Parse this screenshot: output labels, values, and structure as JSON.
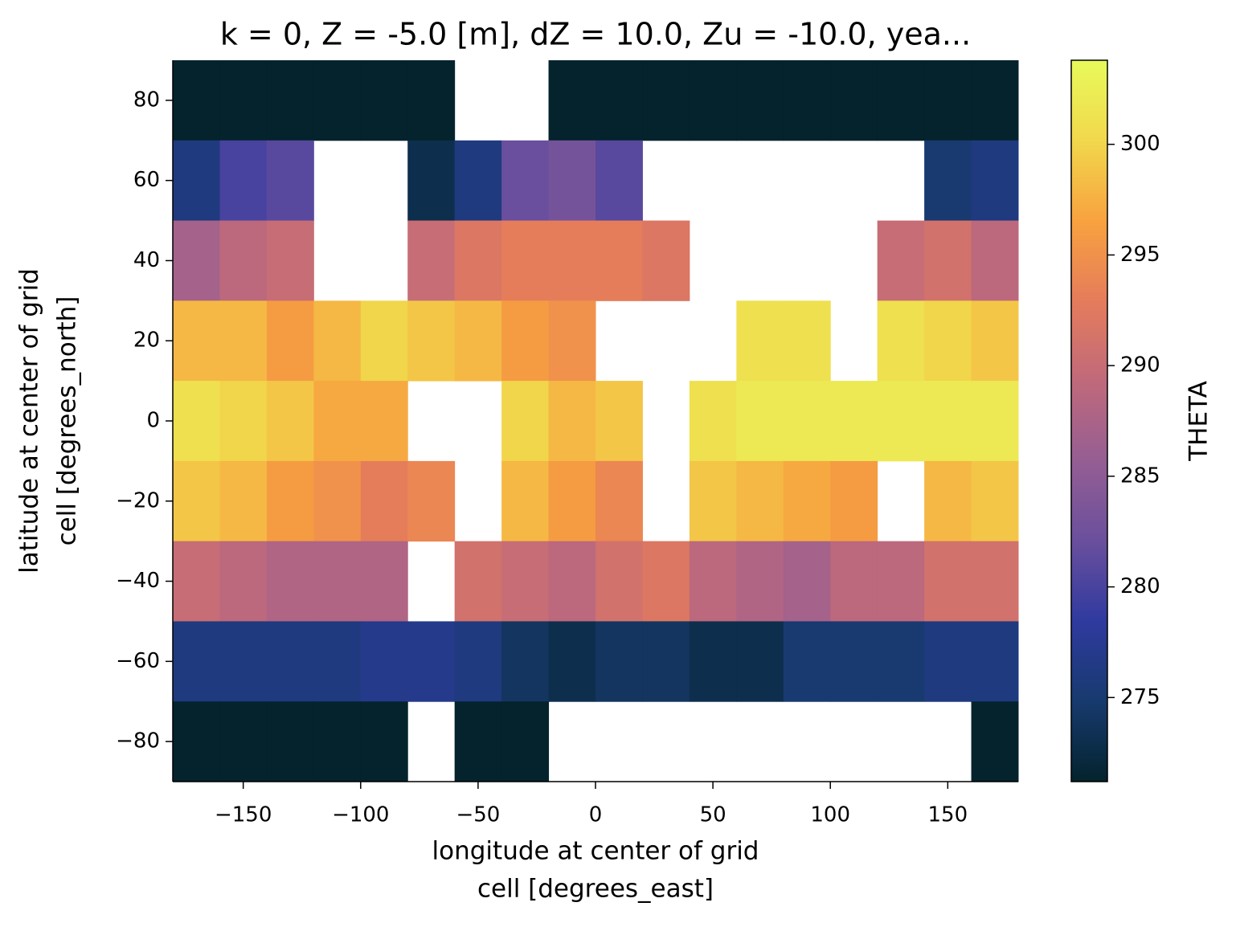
{
  "chart_data": {
    "type": "heatmap",
    "title": "k = 0, Z = -5.0 [m], dZ = 10.0, Zu = -10.0, yea...",
    "xlabel": [
      "longitude at center of grid",
      "cell [degrees_east]"
    ],
    "ylabel": [
      "latitude at center of grid",
      "cell [degrees_north]"
    ],
    "colorbar_label": "THETA",
    "x": [
      -170,
      -150,
      -130,
      -110,
      -90,
      -70,
      -50,
      -30,
      -10,
      10,
      30,
      50,
      70,
      90,
      110,
      130,
      150,
      170
    ],
    "y": [
      80,
      60,
      40,
      20,
      0,
      -20,
      -40,
      -60,
      -80
    ],
    "z": [
      [
        271,
        271,
        271,
        271,
        271,
        271,
        null,
        null,
        271,
        271,
        271,
        271,
        271,
        271,
        271,
        271,
        271,
        271
      ],
      [
        276,
        280,
        281,
        null,
        null,
        273,
        276,
        282,
        283,
        281,
        null,
        null,
        null,
        null,
        null,
        null,
        275,
        276
      ],
      [
        287,
        289,
        290,
        null,
        null,
        290,
        292,
        293,
        293,
        293,
        292,
        null,
        null,
        null,
        null,
        290,
        291,
        289
      ],
      [
        298,
        298,
        296,
        298,
        300,
        299,
        298,
        296,
        295,
        null,
        null,
        null,
        301,
        301,
        null,
        301,
        300,
        299
      ],
      [
        301,
        300,
        299,
        297,
        297,
        null,
        null,
        300,
        298,
        299,
        null,
        301,
        302,
        302,
        302,
        302,
        302,
        302
      ],
      [
        299,
        298,
        296,
        295,
        293,
        294,
        null,
        298,
        296,
        294,
        null,
        299,
        298,
        297,
        296,
        null,
        298,
        299
      ],
      [
        290,
        289,
        288,
        288,
        288,
        null,
        291,
        290,
        289,
        291,
        292,
        289,
        288,
        287,
        289,
        289,
        291,
        291
      ],
      [
        276,
        276,
        276,
        276,
        277,
        277,
        276,
        274,
        273,
        274,
        274,
        273,
        273,
        275,
        275,
        275,
        276,
        276
      ],
      [
        271,
        271,
        271,
        271,
        271,
        null,
        271,
        271,
        null,
        null,
        null,
        null,
        null,
        null,
        null,
        null,
        null,
        271
      ]
    ],
    "xlim": [
      -180,
      180
    ],
    "ylim": [
      -90,
      90
    ],
    "xticks": [
      {
        "value": -150,
        "label": "−150"
      },
      {
        "value": -100,
        "label": "−100"
      },
      {
        "value": -50,
        "label": "−50"
      },
      0,
      50,
      100,
      150
    ],
    "yticks": [
      {
        "value": -80,
        "label": "−80"
      },
      {
        "value": -60,
        "label": "−60"
      },
      {
        "value": -40,
        "label": "−40"
      },
      {
        "value": -20,
        "label": "−20"
      },
      0,
      20,
      40,
      60,
      80
    ],
    "clim": [
      271.2,
      303.8
    ],
    "cticks": [
      275,
      280,
      285,
      290,
      295,
      300
    ],
    "colormap": [
      "#04232d",
      "#173a6e",
      "#2f3a9f",
      "#6a4f9d",
      "#955e93",
      "#c0697b",
      "#e57c5b",
      "#f8a23f",
      "#f1d84c",
      "#e8fa5b"
    ]
  }
}
